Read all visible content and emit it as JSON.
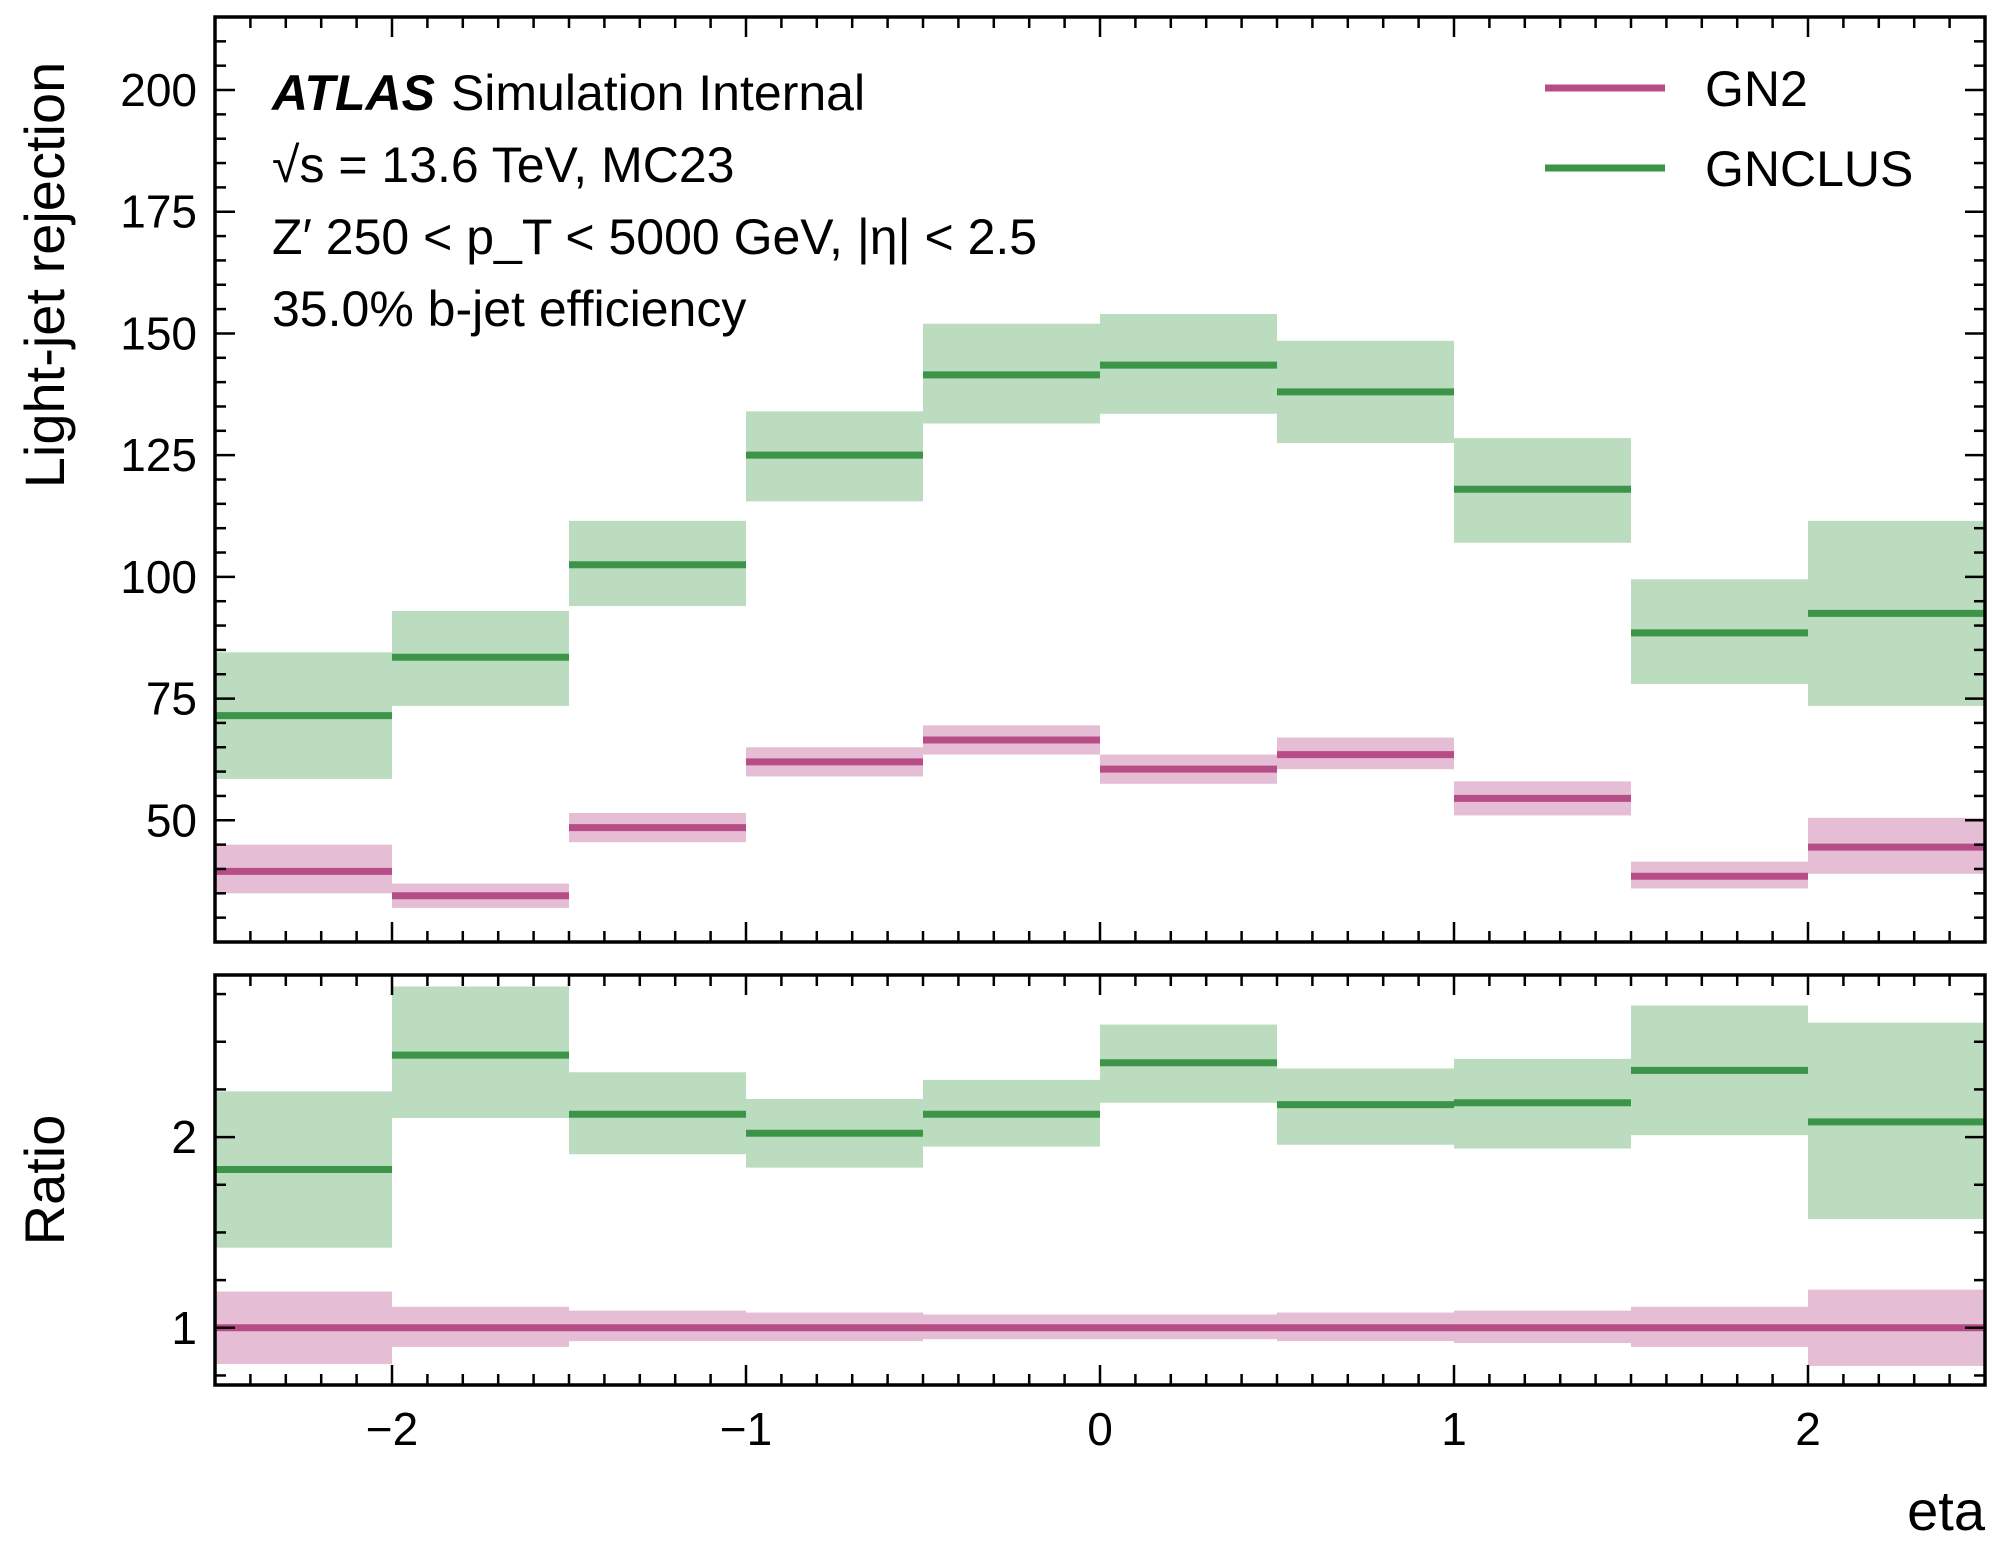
{
  "chart_data": {
    "type": "step-bar",
    "x_label": "eta",
    "bin_edges": [
      -2.5,
      -2.0,
      -1.5,
      -1.0,
      -0.5,
      0.0,
      0.5,
      1.0,
      1.5,
      2.0,
      2.5
    ],
    "x_ticks": [
      -2,
      -1,
      0,
      1,
      2
    ],
    "x_tick_labels": [
      "−2",
      "−1",
      "0",
      "1",
      "2"
    ],
    "x_lim": [
      -2.5,
      2.5
    ],
    "annotation": {
      "atlas": "ATLAS",
      "status": "Simulation Internal",
      "line2": "√s = 13.6 TeV, MC23",
      "line3": "Z′ 250 < p_T < 5000 GeV, |η| < 2.5",
      "line4": "35.0% b-jet efficiency"
    },
    "legend": {
      "position": "top-right",
      "entries": [
        "GN2",
        "GNCLUS"
      ]
    },
    "colors": {
      "GN2": "#b64d87",
      "GNCLUS": "#3b9447",
      "GN2_band": "#e5bed5",
      "GNCLUS_band": "#bbdcbf"
    },
    "top_panel": {
      "y_label": "Light-jet rejection",
      "y_lim": [
        25,
        215
      ],
      "y_ticks": [
        50,
        75,
        100,
        125,
        150,
        175,
        200
      ],
      "series": [
        {
          "name": "GN2",
          "values": [
            39.5,
            34.5,
            48.5,
            62,
            66.5,
            60.5,
            63.5,
            54.5,
            38.5,
            44.5
          ],
          "band_low": [
            35,
            32,
            45.5,
            59,
            63.5,
            57.5,
            60.5,
            51,
            36,
            39
          ],
          "band_high": [
            45,
            37,
            51.5,
            65,
            69.5,
            63.5,
            67,
            58,
            41.5,
            50.5
          ]
        },
        {
          "name": "GNCLUS",
          "values": [
            71.5,
            83.5,
            102.5,
            125,
            141.5,
            143.5,
            138,
            118,
            88.5,
            92.5
          ],
          "band_low": [
            58.5,
            73.5,
            94,
            115.5,
            131.5,
            133.5,
            127.5,
            107,
            78,
            73.5
          ],
          "band_high": [
            84.5,
            93,
            111.5,
            134,
            152,
            154,
            148.5,
            128.5,
            99.5,
            111.5
          ]
        }
      ]
    },
    "bottom_panel": {
      "y_label": "Ratio",
      "y_lim": [
        0.7,
        2.85
      ],
      "y_ticks": [
        1,
        2
      ],
      "series": [
        {
          "name": "GN2",
          "values": [
            1,
            1,
            1,
            1,
            1,
            1,
            1,
            1,
            1,
            1
          ],
          "band_low": [
            0.81,
            0.9,
            0.93,
            0.93,
            0.94,
            0.94,
            0.93,
            0.92,
            0.9,
            0.8
          ],
          "band_high": [
            1.19,
            1.11,
            1.09,
            1.08,
            1.07,
            1.07,
            1.08,
            1.09,
            1.11,
            1.2
          ]
        },
        {
          "name": "GNCLUS",
          "values": [
            1.83,
            2.43,
            2.12,
            2.02,
            2.12,
            2.39,
            2.17,
            2.18,
            2.35,
            2.08
          ],
          "band_low": [
            1.42,
            2.1,
            1.91,
            1.84,
            1.95,
            2.18,
            1.96,
            1.94,
            2.01,
            1.57
          ],
          "band_high": [
            2.24,
            2.79,
            2.34,
            2.2,
            2.3,
            2.59,
            2.36,
            2.41,
            2.69,
            2.6
          ]
        }
      ]
    }
  }
}
